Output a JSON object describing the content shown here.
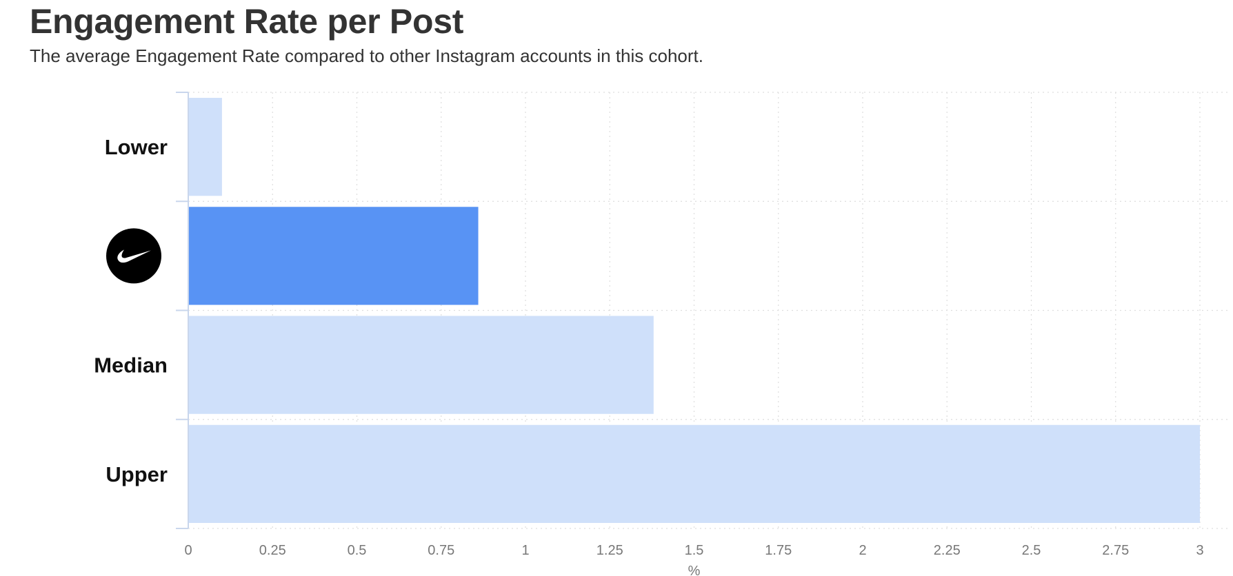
{
  "title": "Engagement Rate per Post",
  "subtitle": "The average Engagement Rate compared to other Instagram accounts in this cohort.",
  "chart_data": {
    "type": "bar",
    "orientation": "horizontal",
    "categories": [
      "Lower",
      "",
      "Median",
      "Upper"
    ],
    "category_icons": [
      null,
      "nike-logo-icon",
      null,
      null
    ],
    "values": [
      0.1,
      0.86,
      1.38,
      3.0
    ],
    "highlight_index": 1,
    "xlabel": "%",
    "ylabel": "",
    "xlim": [
      0,
      3
    ],
    "xticks": [
      "0",
      "0.25",
      "0.5",
      "0.75",
      "1",
      "1.25",
      "1.5",
      "1.75",
      "2",
      "2.25",
      "2.5",
      "2.75",
      "3"
    ],
    "grid": true,
    "legend": "none",
    "colors": {
      "bar": "#cfe0fa",
      "highlight": "#5893f4",
      "axis": "#c9d6ec",
      "grid": "#dddddd",
      "logo_bg": "#000000",
      "logo_fg": "#ffffff"
    }
  }
}
